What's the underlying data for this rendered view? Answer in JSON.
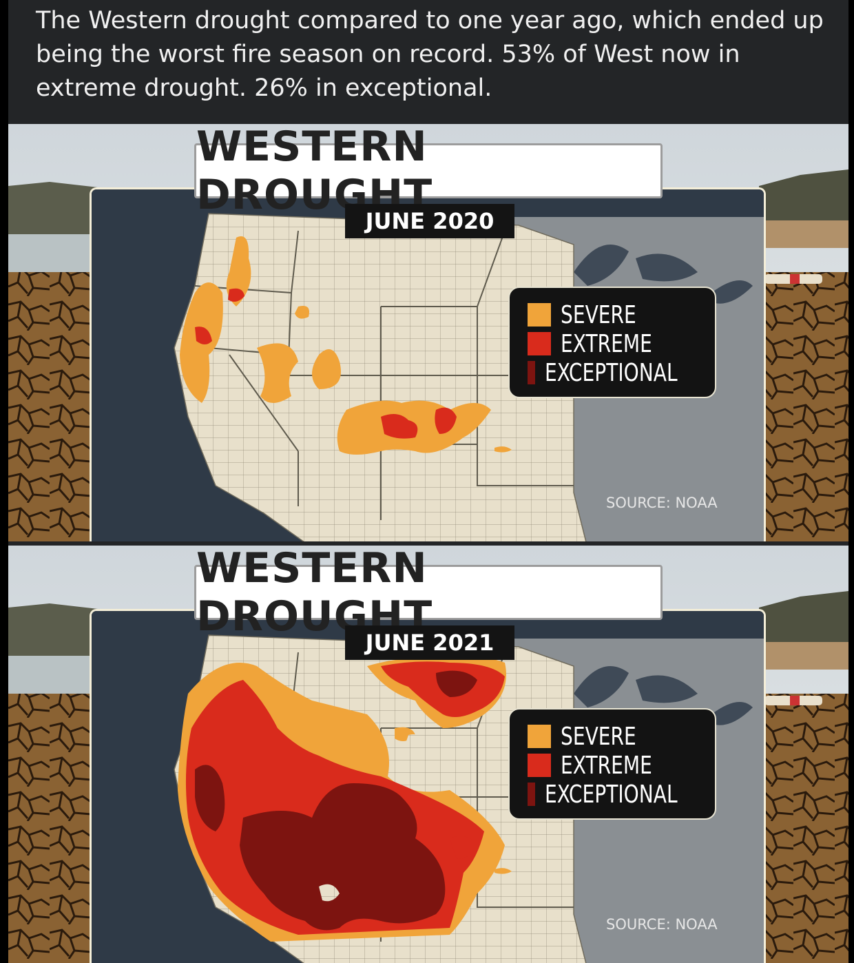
{
  "post": {
    "text": "The Western drought compared to one year ago, which ended up being the worst fire season on record. 53% of West now in extreme drought. 26% in exceptional."
  },
  "legend_colors": {
    "severe": "#f0a43a",
    "extreme": "#d92b1c",
    "exceptional": "#7d1410"
  },
  "maps": [
    {
      "title": "WESTERN DROUGHT",
      "date": "JUNE 2020",
      "legend": [
        "SEVERE",
        "EXTREME",
        "EXCEPTIONAL"
      ],
      "source": "SOURCE: NOAA"
    },
    {
      "title": "WESTERN DROUGHT",
      "date": "JUNE 2021",
      "legend": [
        "SEVERE",
        "EXTREME",
        "EXCEPTIONAL"
      ],
      "source": "SOURCE: NOAA"
    }
  ]
}
